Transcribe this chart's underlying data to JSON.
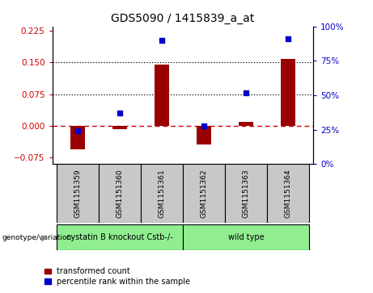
{
  "title": "GDS5090 / 1415839_a_at",
  "samples": [
    "GSM1151359",
    "GSM1151360",
    "GSM1151361",
    "GSM1151362",
    "GSM1151363",
    "GSM1151364"
  ],
  "transformed_count": [
    -0.055,
    -0.008,
    0.145,
    -0.043,
    0.01,
    0.158
  ],
  "percentile_rank": [
    24,
    37,
    90,
    28,
    52,
    91
  ],
  "groups": [
    {
      "name": "cystatin B knockout Cstb-/-",
      "indices": [
        0,
        1,
        2
      ]
    },
    {
      "name": "wild type",
      "indices": [
        3,
        4,
        5
      ]
    }
  ],
  "group_color": "#90EE90",
  "bar_color": "#990000",
  "dot_color": "#0000CC",
  "ylim_left": [
    -0.09,
    0.235
  ],
  "ylim_right": [
    0,
    100
  ],
  "yticks_left": [
    -0.075,
    0,
    0.075,
    0.15,
    0.225
  ],
  "yticks_right": [
    0,
    25,
    50,
    75,
    100
  ],
  "hlines": [
    0.075,
    0.15
  ],
  "zero_line_color": "#CC0000",
  "sample_box_color": "#c8c8c8",
  "right_axis_color": "#0000CC",
  "left_axis_color": "#CC0000"
}
